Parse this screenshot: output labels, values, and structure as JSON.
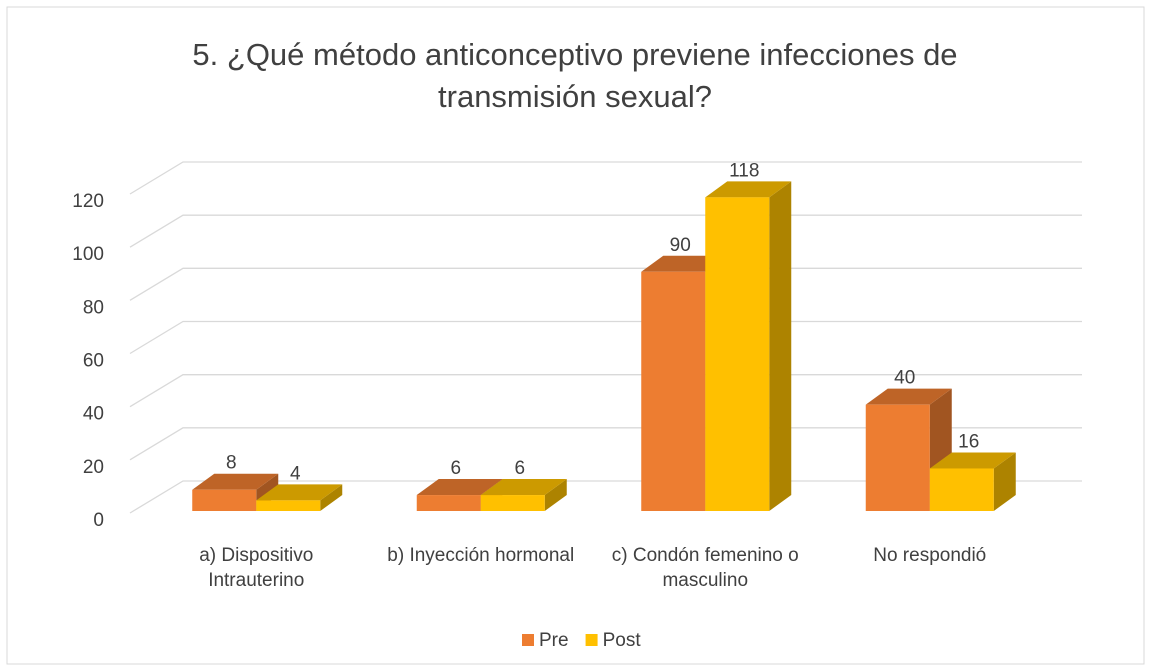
{
  "chart_data": {
    "type": "bar3d",
    "title": "5. ¿Qué método anticonceptivo previene infecciones de transmisión sexual?",
    "categories": [
      "a) Dispositivo Intrauterino",
      "b) Inyección hormonal",
      "c) Condón femenino o masculino",
      "No respondió"
    ],
    "series": [
      {
        "name": "Pre",
        "color": "#ED7D31",
        "values": [
          8,
          6,
          90,
          40
        ]
      },
      {
        "name": "Post",
        "color": "#FFC000",
        "values": [
          4,
          6,
          118,
          16
        ]
      }
    ],
    "ylim": [
      0,
      120
    ],
    "yticks": [
      0,
      20,
      40,
      60,
      80,
      100,
      120
    ],
    "grid": true,
    "legend": "bottom"
  }
}
